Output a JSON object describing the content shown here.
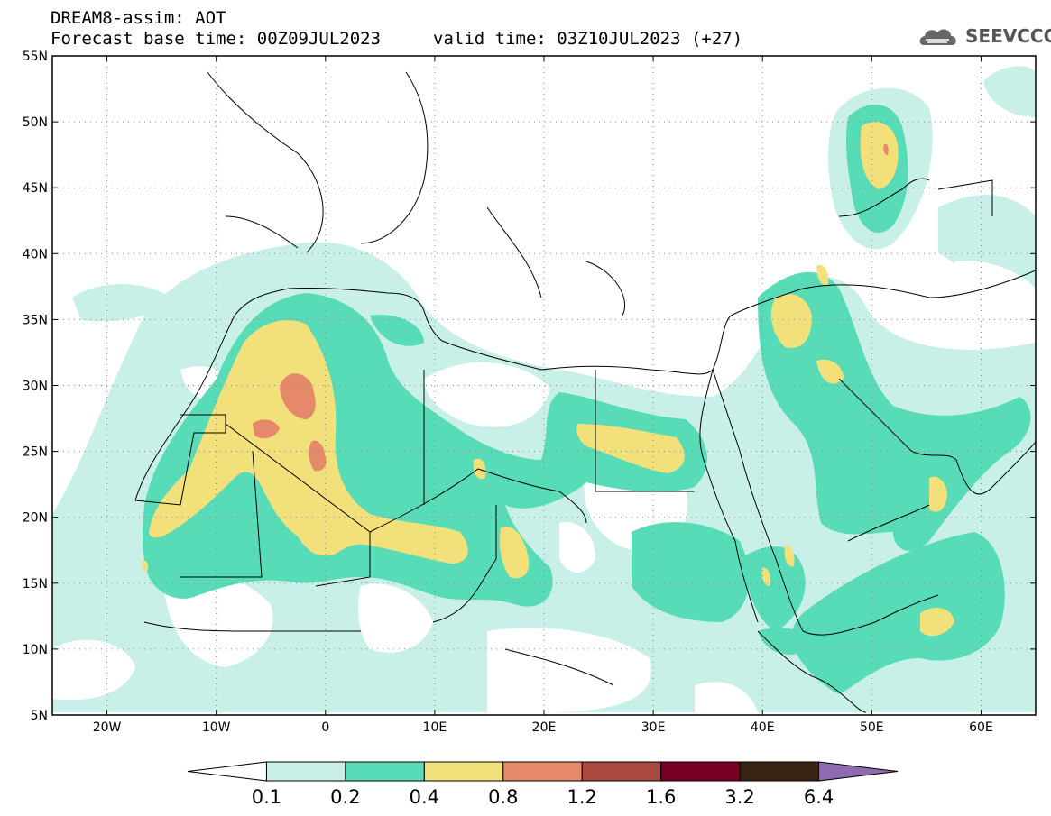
{
  "header": {
    "title": "DREAM8-assim: AOT",
    "forecast": "Forecast base time: 00Z09JUL2023",
    "valid": "valid time: 03Z10JUL2023 (+27)",
    "logo_text": "SEEVCCC"
  },
  "map": {
    "lon_range": [
      -25,
      65
    ],
    "lat_range": [
      5,
      55
    ],
    "lon_ticks": [
      {
        "value": -20,
        "label": "20W"
      },
      {
        "value": -10,
        "label": "10W"
      },
      {
        "value": 0,
        "label": "0"
      },
      {
        "value": 10,
        "label": "10E"
      },
      {
        "value": 20,
        "label": "20E"
      },
      {
        "value": 30,
        "label": "30E"
      },
      {
        "value": 40,
        "label": "40E"
      },
      {
        "value": 50,
        "label": "50E"
      },
      {
        "value": 60,
        "label": "60E"
      }
    ],
    "lat_ticks": [
      {
        "value": 5,
        "label": "5N"
      },
      {
        "value": 10,
        "label": "10N"
      },
      {
        "value": 15,
        "label": "15N"
      },
      {
        "value": 20,
        "label": "20N"
      },
      {
        "value": 25,
        "label": "25N"
      },
      {
        "value": 30,
        "label": "30N"
      },
      {
        "value": 35,
        "label": "35N"
      },
      {
        "value": 40,
        "label": "40N"
      },
      {
        "value": 45,
        "label": "45N"
      },
      {
        "value": 50,
        "label": "50N"
      },
      {
        "value": 55,
        "label": "55N"
      }
    ],
    "grid": "dotted"
  },
  "colorbar": {
    "levels": [
      "0.1",
      "0.2",
      "0.4",
      "0.8",
      "1.2",
      "1.6",
      "3.2",
      "6.4"
    ],
    "colors": [
      "#ffffff",
      "#c8f0e8",
      "#58dcb8",
      "#f2e07a",
      "#e6896a",
      "#aa4a40",
      "#7a0024",
      "#3c2414",
      "#8e6aae"
    ]
  }
}
